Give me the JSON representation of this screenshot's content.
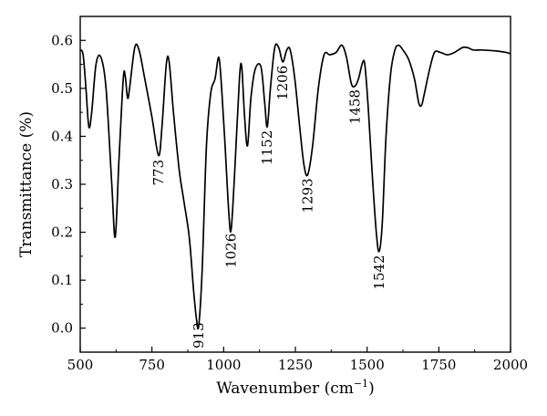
{
  "chart_data": {
    "type": "line",
    "xlabel": "Wavenumber (cm",
    "xlabel_sup": "−1",
    "xlabel_suffix": ")",
    "ylabel": "Transmittance (%)",
    "xlim": [
      500,
      2000
    ],
    "ylim": [
      -0.05,
      0.65
    ],
    "x_ticks": [
      "500",
      "750",
      "1000",
      "1250",
      "1500",
      "1750",
      "2000"
    ],
    "y_ticks": [
      "0.0",
      "0.1",
      "0.2",
      "0.3",
      "0.4",
      "0.5",
      "0.6"
    ],
    "x_tick_values": [
      500,
      750,
      1000,
      1250,
      1500,
      1750,
      2000
    ],
    "y_tick_values": [
      0.0,
      0.1,
      0.2,
      0.3,
      0.4,
      0.5,
      0.6
    ],
    "grid": false,
    "line_color": "#000000",
    "series": [
      {
        "points": [
          [
            500,
            0.58
          ],
          [
            510,
            0.57
          ],
          [
            520,
            0.5
          ],
          [
            530,
            0.42
          ],
          [
            540,
            0.45
          ],
          [
            555,
            0.55
          ],
          [
            572,
            0.565
          ],
          [
            590,
            0.5
          ],
          [
            610,
            0.3
          ],
          [
            622,
            0.19
          ],
          [
            635,
            0.35
          ],
          [
            650,
            0.52
          ],
          [
            657,
            0.525
          ],
          [
            665,
            0.48
          ],
          [
            672,
            0.5
          ],
          [
            690,
            0.585
          ],
          [
            705,
            0.58
          ],
          [
            725,
            0.52
          ],
          [
            750,
            0.44
          ],
          [
            773,
            0.36
          ],
          [
            785,
            0.42
          ],
          [
            800,
            0.55
          ],
          [
            810,
            0.555
          ],
          [
            825,
            0.45
          ],
          [
            845,
            0.33
          ],
          [
            860,
            0.27
          ],
          [
            880,
            0.19
          ],
          [
            895,
            0.08
          ],
          [
            905,
            0.02
          ],
          [
            913,
            0.005
          ],
          [
            925,
            0.12
          ],
          [
            940,
            0.38
          ],
          [
            955,
            0.49
          ],
          [
            970,
            0.52
          ],
          [
            983,
            0.565
          ],
          [
            993,
            0.5
          ],
          [
            1005,
            0.38
          ],
          [
            1018,
            0.24
          ],
          [
            1026,
            0.205
          ],
          [
            1038,
            0.32
          ],
          [
            1055,
            0.52
          ],
          [
            1063,
            0.545
          ],
          [
            1072,
            0.45
          ],
          [
            1083,
            0.38
          ],
          [
            1095,
            0.48
          ],
          [
            1110,
            0.54
          ],
          [
            1130,
            0.545
          ],
          [
            1143,
            0.47
          ],
          [
            1152,
            0.42
          ],
          [
            1163,
            0.5
          ],
          [
            1178,
            0.585
          ],
          [
            1192,
            0.585
          ],
          [
            1206,
            0.555
          ],
          [
            1220,
            0.58
          ],
          [
            1232,
            0.58
          ],
          [
            1248,
            0.52
          ],
          [
            1265,
            0.42
          ],
          [
            1280,
            0.34
          ],
          [
            1293,
            0.32
          ],
          [
            1310,
            0.38
          ],
          [
            1330,
            0.5
          ],
          [
            1350,
            0.57
          ],
          [
            1370,
            0.57
          ],
          [
            1392,
            0.575
          ],
          [
            1412,
            0.59
          ],
          [
            1428,
            0.565
          ],
          [
            1445,
            0.51
          ],
          [
            1458,
            0.505
          ],
          [
            1470,
            0.52
          ],
          [
            1485,
            0.555
          ],
          [
            1493,
            0.545
          ],
          [
            1505,
            0.45
          ],
          [
            1518,
            0.32
          ],
          [
            1532,
            0.2
          ],
          [
            1542,
            0.16
          ],
          [
            1553,
            0.22
          ],
          [
            1566,
            0.4
          ],
          [
            1582,
            0.53
          ],
          [
            1597,
            0.58
          ],
          [
            1610,
            0.59
          ],
          [
            1625,
            0.58
          ],
          [
            1645,
            0.56
          ],
          [
            1665,
            0.52
          ],
          [
            1680,
            0.47
          ],
          [
            1690,
            0.465
          ],
          [
            1700,
            0.49
          ],
          [
            1718,
            0.54
          ],
          [
            1735,
            0.575
          ],
          [
            1755,
            0.575
          ],
          [
            1780,
            0.57
          ],
          [
            1805,
            0.575
          ],
          [
            1832,
            0.585
          ],
          [
            1850,
            0.585
          ],
          [
            1870,
            0.58
          ],
          [
            1900,
            0.58
          ],
          [
            1950,
            0.578
          ],
          [
            1985,
            0.575
          ],
          [
            2000,
            0.572
          ]
        ]
      }
    ],
    "annotations": [
      {
        "text": "773",
        "x": 773,
        "y": 0.36
      },
      {
        "text": "913",
        "x": 913,
        "y": 0.005
      },
      {
        "text": "1026",
        "x": 1026,
        "y": 0.205
      },
      {
        "text": "1152",
        "x": 1152,
        "y": 0.42
      },
      {
        "text": "1206",
        "x": 1206,
        "y": 0.555
      },
      {
        "text": "1293",
        "x": 1293,
        "y": 0.32
      },
      {
        "text": "1458",
        "x": 1458,
        "y": 0.505
      },
      {
        "text": "1542",
        "x": 1542,
        "y": 0.16
      }
    ]
  }
}
